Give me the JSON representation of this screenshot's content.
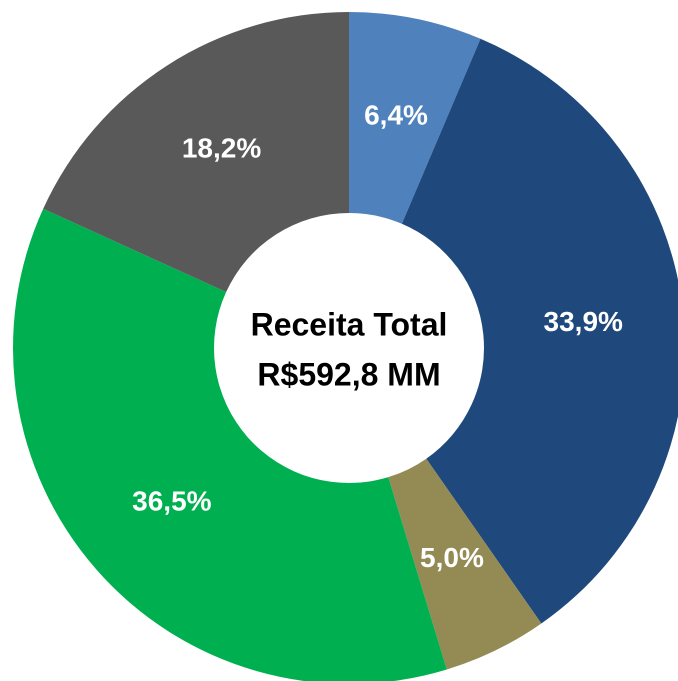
{
  "chart_data": {
    "type": "donut",
    "values": [
      6.4,
      33.9,
      5.0,
      36.5,
      18.2
    ],
    "value_labels": [
      "6,4%",
      "33,9%",
      "5,0%",
      "36,5%",
      "18,2%"
    ],
    "colors": [
      "#4f81bd",
      "#1f497d",
      "#948a54",
      "#00b050",
      "#595959"
    ],
    "annotations": [
      "Receita Total",
      "R$592,8 MM"
    ]
  }
}
